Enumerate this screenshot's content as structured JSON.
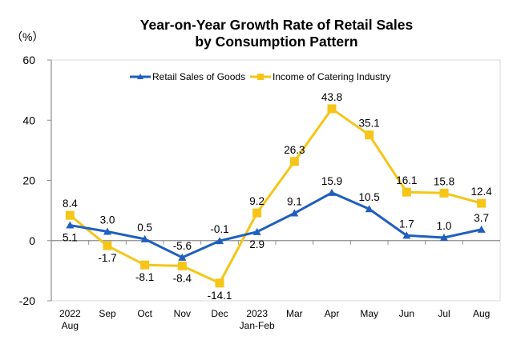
{
  "chart_data": {
    "type": "line",
    "title": [
      "Year-on-Year Growth Rate of Retail Sales",
      "by Consumption Pattern"
    ],
    "ylabel": "（%）",
    "xlabel": "",
    "ylim": [
      -20,
      60
    ],
    "yticks": [
      -20,
      0,
      20,
      40,
      60
    ],
    "grid": false,
    "legend_position": "top-center",
    "categories": [
      [
        "2022",
        "Aug"
      ],
      [
        "Sep"
      ],
      [
        "Oct"
      ],
      [
        "Nov"
      ],
      [
        "Dec"
      ],
      [
        "2023",
        "Jan-Feb"
      ],
      [
        "Mar"
      ],
      [
        "Apr"
      ],
      [
        "May"
      ],
      [
        "Jun"
      ],
      [
        "Jul"
      ],
      [
        "Aug"
      ]
    ],
    "series": [
      {
        "name": "Retail Sales of Goods",
        "color": "#1f5fbf",
        "marker": "triangle",
        "values": [
          5.1,
          3.0,
          0.5,
          -5.6,
          -0.1,
          2.9,
          9.1,
          15.9,
          10.5,
          1.7,
          1.0,
          3.7
        ],
        "labels": [
          "5.1",
          "3.0",
          "0.5",
          "-5.6",
          "-0.1",
          "2.9",
          "9.1",
          "15.9",
          "10.5",
          "1.7",
          "1.0",
          "3.7"
        ],
        "label_pos": [
          "below",
          "above",
          "above",
          "above",
          "above",
          "below",
          "above",
          "above",
          "above",
          "above",
          "above",
          "above"
        ]
      },
      {
        "name": "Income of Catering Industry",
        "color": "#f5c518",
        "marker": "square",
        "values": [
          8.4,
          -1.7,
          -8.1,
          -8.4,
          -14.1,
          9.2,
          26.3,
          43.8,
          35.1,
          16.1,
          15.8,
          12.4
        ],
        "labels": [
          "8.4",
          "-1.7",
          "-8.1",
          "-8.4",
          "-14.1",
          "9.2",
          "26.3",
          "43.8",
          "35.1",
          "16.1",
          "15.8",
          "12.4"
        ],
        "label_pos": [
          "above",
          "below",
          "below",
          "below",
          "below",
          "above",
          "above",
          "above",
          "above",
          "above",
          "above",
          "above"
        ]
      }
    ]
  }
}
